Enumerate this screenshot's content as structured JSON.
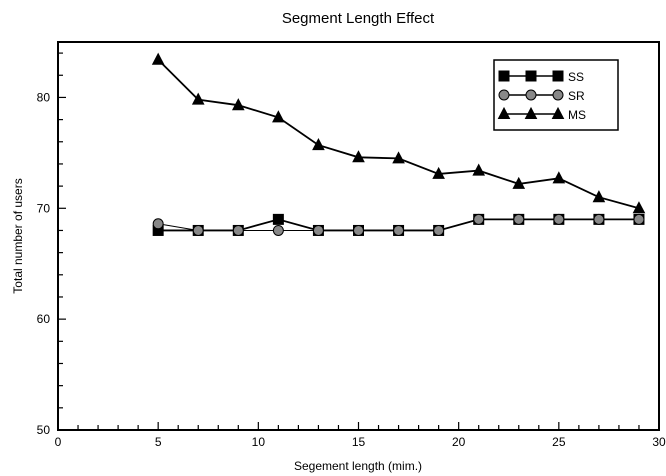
{
  "chart_data": {
    "type": "line",
    "title": "Segment Length Effect",
    "xlabel": "Segement length (mim.)",
    "ylabel": "Total number of users",
    "xlim": [
      0,
      30
    ],
    "ylim": [
      50,
      85
    ],
    "x_ticks": [
      0,
      5,
      10,
      15,
      20,
      25,
      30
    ],
    "y_ticks": [
      50,
      60,
      70,
      80
    ],
    "grid": false,
    "legend_position": "top-right",
    "x": [
      5,
      7,
      9,
      11,
      13,
      15,
      17,
      19,
      21,
      23,
      25,
      27,
      29
    ],
    "series": [
      {
        "name": "SS",
        "marker": "square",
        "color": "#000000",
        "values": [
          68,
          68,
          68,
          69,
          68,
          68,
          68,
          68,
          69,
          69,
          69,
          69,
          69
        ]
      },
      {
        "name": "SR",
        "marker": "circle",
        "color": "#888888",
        "values": [
          68.6,
          68,
          68,
          68,
          68,
          68,
          68,
          68,
          69,
          69,
          69,
          69,
          69
        ]
      },
      {
        "name": "MS",
        "marker": "triangle",
        "color": "#000000",
        "values": [
          83.4,
          79.8,
          79.3,
          78.2,
          75.7,
          74.6,
          74.5,
          73.1,
          73.4,
          72.2,
          72.7,
          71,
          70
        ]
      }
    ]
  }
}
